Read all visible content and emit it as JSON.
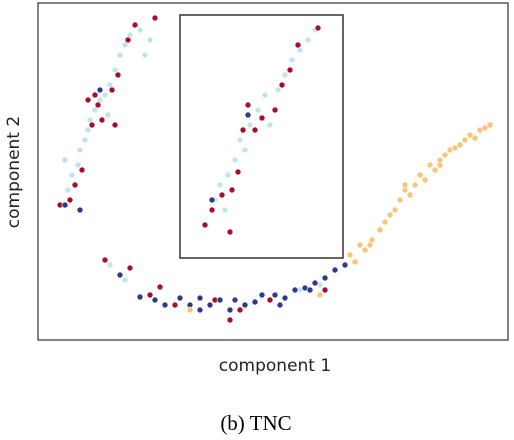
{
  "chart_data": {
    "type": "scatter",
    "x_label": "component 1",
    "y_label": "component 2",
    "caption": "(b) TNC",
    "xlim": [
      0,
      470
    ],
    "ylim": [
      0,
      337
    ],
    "grid": false,
    "series": [
      {
        "color": "#c1e3ee",
        "x": [
          27,
          34,
          30,
          42,
          47,
          52,
          62,
          57,
          67,
          72,
          77,
          82,
          87,
          92,
          102,
          107,
          112,
          40,
          50,
          70,
          177,
          182,
          190,
          197,
          202,
          212,
          220,
          227,
          232,
          240,
          247,
          254,
          262,
          270,
          277,
          187,
          207,
          72,
          87,
          262,
          282
        ],
        "values": [
          180,
          165,
          150,
          190,
          200,
          220,
          240,
          230,
          245,
          255,
          270,
          285,
          295,
          305,
          310,
          285,
          300,
          175,
          210,
          225,
          140,
          155,
          165,
          180,
          200,
          215,
          230,
          245,
          215,
          250,
          265,
          280,
          290,
          300,
          310,
          130,
          190,
          75,
          60,
          50,
          55
        ]
      },
      {
        "color": "#a50f2d",
        "x": [
          32,
          37,
          44,
          54,
          60,
          64,
          74,
          80,
          90,
          97,
          117,
          57,
          50,
          22,
          77,
          167,
          174,
          192,
          194,
          200,
          205,
          217,
          224,
          237,
          244,
          252,
          260,
          280,
          210,
          184,
          67,
          92,
          112,
          137,
          192,
          202,
          177,
          232,
          287,
          122
        ],
        "values": [
          140,
          155,
          170,
          215,
          235,
          220,
          250,
          265,
          300,
          315,
          322,
          245,
          240,
          135,
          215,
          115,
          130,
          108,
          150,
          168,
          210,
          210,
          222,
          230,
          255,
          270,
          295,
          312,
          235,
          145,
          80,
          72,
          45,
          35,
          20,
          30,
          40,
          40,
          50,
          53
        ]
      },
      {
        "color": "#2e3a8c",
        "x": [
          27,
          42,
          62,
          210,
          174,
          102,
          117,
          127,
          142,
          152,
          162,
          172,
          182,
          192,
          207,
          217,
          224,
          237,
          247,
          257,
          267,
          277,
          287,
          297,
          307,
          82,
          162,
          197,
          242,
          272
        ],
        "values": [
          135,
          130,
          250,
          225,
          140,
          43,
          40,
          35,
          42,
          35,
          30,
          35,
          40,
          30,
          35,
          38,
          45,
          45,
          42,
          50,
          52,
          57,
          62,
          70,
          75,
          65,
          42,
          40,
          35,
          50
        ]
      },
      {
        "color": "#f8c47a",
        "x": [
          312,
          317,
          322,
          327,
          334,
          342,
          347,
          352,
          357,
          362,
          367,
          372,
          377,
          382,
          387,
          392,
          397,
          402,
          407,
          412,
          417,
          422,
          427,
          432,
          437,
          442,
          447,
          452,
          367,
          402,
          332,
          152,
          282
        ],
        "values": [
          85,
          78,
          95,
          90,
          100,
          110,
          118,
          125,
          130,
          140,
          150,
          145,
          155,
          165,
          160,
          175,
          170,
          180,
          185,
          190,
          192,
          195,
          200,
          205,
          202,
          210,
          212,
          215,
          155,
          175,
          95,
          30,
          45
        ]
      }
    ]
  }
}
